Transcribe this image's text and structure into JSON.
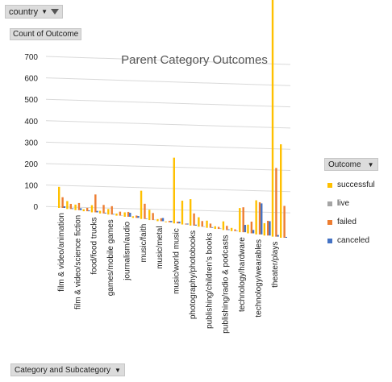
{
  "filter": {
    "label": "country"
  },
  "value_button": {
    "label": "Count of Outcome"
  },
  "axis_button": {
    "label": "Category and Subcategory"
  },
  "legend_button": {
    "label": "Outcome"
  },
  "chart_data": {
    "type": "bar",
    "title": "Parent Category Outcomes",
    "ylim": [
      0,
      700
    ],
    "y_ticks": [
      "700",
      "600",
      "500",
      "400",
      "300",
      "200",
      "100",
      "0"
    ],
    "categories": [
      "film & video/animation",
      "film & video/science fiction",
      "food/food trucks",
      "games/mobile games",
      "journalism/audio",
      "music/faith",
      "music/metal",
      "music/world music",
      "photography/photobooks",
      "publishing/children's books",
      "publishing/radio & podcasts",
      "technology/hardware",
      "technology/wearables",
      "theater/plays"
    ],
    "series": [
      {
        "name": "successful",
        "color": "#FFC000",
        "values": [
          154,
          35,
          40,
          28,
          20,
          117,
          8,
          232,
          87,
          22,
          25,
          66,
          88,
          638
        ]
      },
      {
        "name": "live",
        "color": "#A5A5A5",
        "values": [
          0,
          0,
          0,
          0,
          0,
          0,
          0,
          0,
          0,
          0,
          0,
          0,
          0,
          0
        ]
      },
      {
        "name": "failed",
        "color": "#ED7D31",
        "values": [
          78,
          45,
          100,
          42,
          22,
          63,
          11,
          6,
          40,
          13,
          12,
          68,
          83,
          168
        ]
      },
      {
        "name": "canceled",
        "color": "#4472C4",
        "values": [
          12,
          12,
          8,
          3,
          18,
          2,
          12,
          6,
          3,
          2,
          2,
          20,
          80,
          4
        ]
      }
    ],
    "legend_position": "right",
    "grid": true
  }
}
